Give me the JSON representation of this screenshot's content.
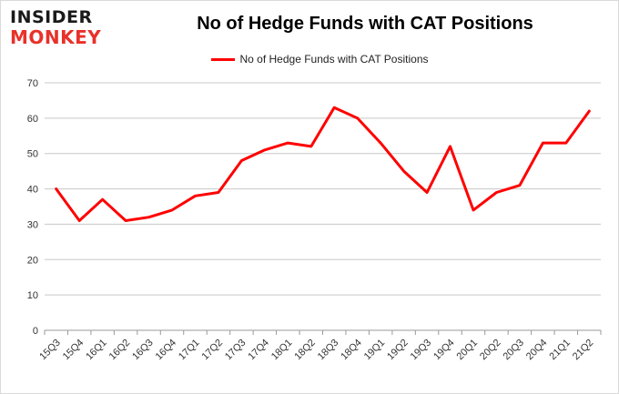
{
  "logo": {
    "top_text": "INSIDER",
    "bottom_text": "MONKEY"
  },
  "chart_data": {
    "type": "line",
    "title": "No of Hedge Funds with CAT Positions",
    "xlabel": "",
    "ylabel": "",
    "categories": [
      "15Q3",
      "15Q4",
      "16Q1",
      "16Q2",
      "16Q3",
      "16Q4",
      "17Q1",
      "17Q2",
      "17Q3",
      "17Q4",
      "18Q1",
      "18Q2",
      "18Q3",
      "18Q4",
      "19Q1",
      "19Q2",
      "19Q3",
      "19Q4",
      "20Q1",
      "20Q2",
      "20Q3",
      "20Q4",
      "21Q1",
      "21Q2"
    ],
    "series": [
      {
        "name": "No of Hedge Funds with CAT Positions",
        "color": "#ff0000",
        "values": [
          40,
          31,
          37,
          31,
          32,
          34,
          38,
          39,
          48,
          51,
          53,
          52,
          63,
          60,
          53,
          45,
          39,
          52,
          34,
          39,
          41,
          53,
          53,
          62
        ]
      }
    ],
    "ylim": [
      0,
      70
    ],
    "yticks": [
      0,
      10,
      20,
      30,
      40,
      50,
      60,
      70
    ],
    "grid": true,
    "legend_position": "top-center"
  }
}
